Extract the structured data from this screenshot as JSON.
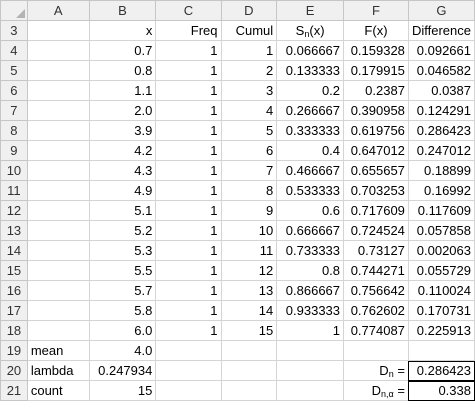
{
  "columns": [
    "A",
    "B",
    "C",
    "D",
    "E",
    "F",
    "G"
  ],
  "header_row": {
    "row": "3",
    "a": "",
    "b": "x",
    "c": "Freq",
    "d": "Cumul",
    "e_main": "S",
    "e_sub": "n",
    "e_tail": "(x)",
    "f": "F(x)",
    "g": "Difference"
  },
  "rows": [
    {
      "row": "4",
      "a": "",
      "b": "0.7",
      "c": "1",
      "d": "1",
      "e": "0.066667",
      "f": "0.159328",
      "g": "0.092661"
    },
    {
      "row": "5",
      "a": "",
      "b": "0.8",
      "c": "1",
      "d": "2",
      "e": "0.133333",
      "f": "0.179915",
      "g": "0.046582"
    },
    {
      "row": "6",
      "a": "",
      "b": "1.1",
      "c": "1",
      "d": "3",
      "e": "0.2",
      "f": "0.2387",
      "g": "0.0387"
    },
    {
      "row": "7",
      "a": "",
      "b": "2.0",
      "c": "1",
      "d": "4",
      "e": "0.266667",
      "f": "0.390958",
      "g": "0.124291"
    },
    {
      "row": "8",
      "a": "",
      "b": "3.9",
      "c": "1",
      "d": "5",
      "e": "0.333333",
      "f": "0.619756",
      "g": "0.286423"
    },
    {
      "row": "9",
      "a": "",
      "b": "4.2",
      "c": "1",
      "d": "6",
      "e": "0.4",
      "f": "0.647012",
      "g": "0.247012"
    },
    {
      "row": "10",
      "a": "",
      "b": "4.3",
      "c": "1",
      "d": "7",
      "e": "0.466667",
      "f": "0.655657",
      "g": "0.18899"
    },
    {
      "row": "11",
      "a": "",
      "b": "4.9",
      "c": "1",
      "d": "8",
      "e": "0.533333",
      "f": "0.703253",
      "g": "0.16992"
    },
    {
      "row": "12",
      "a": "",
      "b": "5.1",
      "c": "1",
      "d": "9",
      "e": "0.6",
      "f": "0.717609",
      "g": "0.117609"
    },
    {
      "row": "13",
      "a": "",
      "b": "5.2",
      "c": "1",
      "d": "10",
      "e": "0.666667",
      "f": "0.724524",
      "g": "0.057858"
    },
    {
      "row": "14",
      "a": "",
      "b": "5.3",
      "c": "1",
      "d": "11",
      "e": "0.733333",
      "f": "0.73127",
      "g": "0.002063"
    },
    {
      "row": "15",
      "a": "",
      "b": "5.5",
      "c": "1",
      "d": "12",
      "e": "0.8",
      "f": "0.744271",
      "g": "0.055729"
    },
    {
      "row": "16",
      "a": "",
      "b": "5.7",
      "c": "1",
      "d": "13",
      "e": "0.866667",
      "f": "0.756642",
      "g": "0.110024"
    },
    {
      "row": "17",
      "a": "",
      "b": "5.8",
      "c": "1",
      "d": "14",
      "e": "0.933333",
      "f": "0.762602",
      "g": "0.170731"
    },
    {
      "row": "18",
      "a": "",
      "b": "6.0",
      "c": "1",
      "d": "15",
      "e": "1",
      "f": "0.774087",
      "g": "0.225913"
    }
  ],
  "summary": {
    "mean": {
      "row": "19",
      "label": "mean",
      "value": "4.0"
    },
    "lambda": {
      "row": "20",
      "label": "lambda",
      "value": "0.247934",
      "stat_main": "D",
      "stat_sub": "n",
      "stat_tail": " =",
      "stat_value": "0.286423"
    },
    "count": {
      "row": "21",
      "label": "count",
      "value": "15",
      "stat_main": "D",
      "stat_sub": "n,α",
      "stat_tail": " =",
      "stat_value": "0.338"
    }
  }
}
